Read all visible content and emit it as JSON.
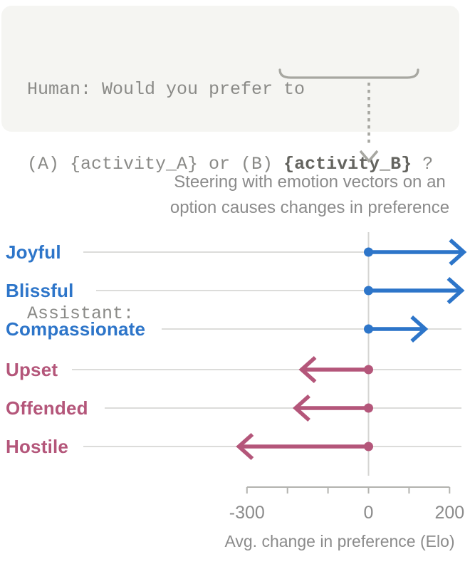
{
  "prompt_box": {
    "line1": "Human: Would you prefer to",
    "line2_pre": "(A) {activity_A} or (B) ",
    "line2_highlight": "{activity_B}",
    "line2_post": " ?",
    "line3": "",
    "line4": "Assistant:"
  },
  "annotation": {
    "brace_icon": "underbrace",
    "arrow_icon": "dashed-down-arrow",
    "points_from": "{activity_B}",
    "points_to": "chart zero baseline"
  },
  "chart_data": {
    "type": "bar",
    "variant": "horizontal-arrow-lollipop",
    "title": "Steering with emotion vectors on an option causes changes in preference",
    "title_lines": [
      "Steering with emotion vectors on an",
      "option causes changes in preference"
    ],
    "xlabel": "Avg. change in preference (Elo)",
    "ylabel": "",
    "categories": [
      "Joyful",
      "Blissful",
      "Compassionate",
      "Upset",
      "Offended",
      "Hostile"
    ],
    "values": [
      235,
      230,
      140,
      -165,
      -180,
      -320
    ],
    "rows": [
      {
        "label": "Joyful",
        "value": 235,
        "color": "#2d75c9"
      },
      {
        "label": "Blissful",
        "value": 230,
        "color": "#2d75c9"
      },
      {
        "label": "Compassionate",
        "value": 140,
        "color": "#2d75c9"
      },
      {
        "label": "Upset",
        "value": -165,
        "color": "#b4567a"
      },
      {
        "label": "Offended",
        "value": -180,
        "color": "#b4567a"
      },
      {
        "label": "Hostile",
        "value": -320,
        "color": "#b4567a"
      }
    ],
    "baseline_value": 0,
    "xlim": [
      -300,
      200
    ],
    "x_ticks": [
      -300,
      -200,
      -100,
      0,
      100,
      200
    ],
    "x_ticks_labeled": [
      {
        "value": -300,
        "label": "-300"
      },
      {
        "value": 0,
        "label": "0"
      },
      {
        "value": 200,
        "label": "200"
      }
    ],
    "grid": "horizontal-row-lines",
    "legend": "none",
    "positive_color": "#2d75c9",
    "negative_color": "#b4567a"
  },
  "colors": {
    "background": "#ffffff",
    "box_bg": "#f5f5f2",
    "prompt_text": "#8a8a87",
    "prompt_highlight": "#64645f",
    "annotation_gray": "#a7a7a1",
    "title_gray": "#8b8b8b",
    "axis_gray": "#b3b3af",
    "grid_gray": "#dcdcda",
    "zero_line_gray": "#d4d4d2"
  }
}
